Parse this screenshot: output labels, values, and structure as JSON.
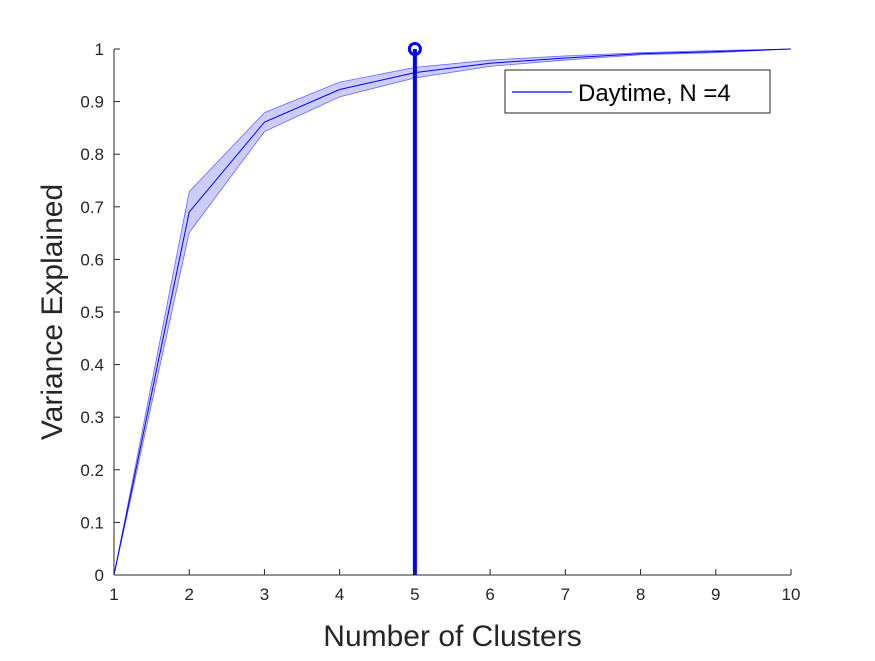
{
  "chart_data": {
    "type": "line",
    "title": "",
    "xlabel": "Number of Clusters",
    "ylabel": "Variance Explained",
    "xlim": [
      1,
      10
    ],
    "ylim": [
      0,
      1
    ],
    "xticks": [
      1,
      2,
      3,
      4,
      5,
      6,
      7,
      8,
      9,
      10
    ],
    "yticks": [
      0,
      0.1,
      0.2,
      0.3,
      0.4,
      0.5,
      0.6,
      0.7,
      0.8,
      0.9,
      1
    ],
    "ytick_labels": [
      "0",
      "0.1",
      "0.2",
      "0.3",
      "0.4",
      "0.5",
      "0.6",
      "0.7",
      "0.8",
      "0.9",
      "1"
    ],
    "grid": false,
    "legend_position": "top-right",
    "series": [
      {
        "name": "Daytime, N =4",
        "color": "#0000ff",
        "x": [
          1,
          2,
          3,
          4,
          5,
          6,
          7,
          8,
          9,
          10
        ],
        "y": [
          0,
          0.69,
          0.861,
          0.923,
          0.955,
          0.973,
          0.983,
          0.991,
          0.995,
          1.0
        ],
        "upper": [
          0,
          0.729,
          0.879,
          0.937,
          0.965,
          0.979,
          0.987,
          0.993,
          0.997,
          1.0
        ],
        "lower": [
          0,
          0.651,
          0.843,
          0.909,
          0.945,
          0.967,
          0.979,
          0.989,
          0.993,
          1.0
        ]
      }
    ],
    "marker_line": {
      "x": 5,
      "y": 1.0,
      "color": "#0000ff"
    }
  }
}
